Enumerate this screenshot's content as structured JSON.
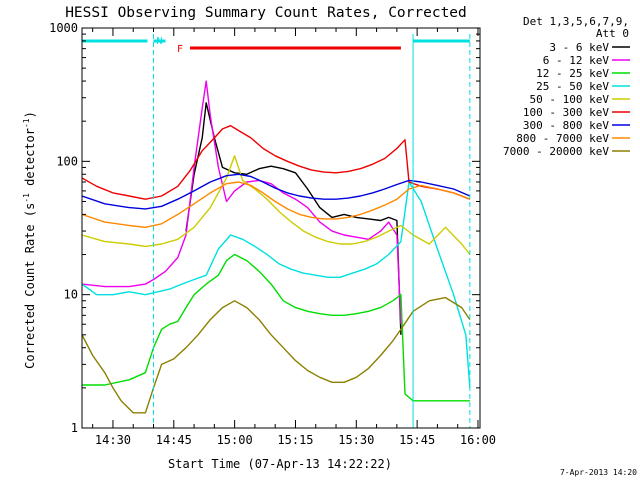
{
  "chart_data": {
    "type": "line",
    "title": "HESSI Observing Summary Count Rates, Corrected",
    "xlabel": "Start Time (07-Apr-13 14:22:22)",
    "ylabel_main": "Corrected Count Rate (s",
    "ylabel_sup1": "-1",
    "ylabel_mid": " detector",
    "ylabel_sup2": "-1",
    "ylabel_end": ")",
    "y_scale": "log",
    "ylim": [
      1,
      1000
    ],
    "xlim": [
      "14:22:22",
      "16:00:30"
    ],
    "x_ticks": [
      "14:30",
      "14:45",
      "15:00",
      "15:15",
      "15:30",
      "15:45",
      "16:00"
    ],
    "y_ticks": [
      "1",
      "10",
      "100",
      "1000"
    ],
    "legend_position": "right",
    "legend_header": [
      "Det 1,3,5,6,7,9,",
      "Att 0"
    ],
    "timestamp": "7-Apr-2013 14:20",
    "annotations": {
      "night_label": "N",
      "flare_label": "F",
      "night_start": "14:22:22",
      "night_end": "14:40:00",
      "night_color": "#00e0e0",
      "night2_start": "15:44:00",
      "night2_end": "15:58:00",
      "flare_start": "14:49:00",
      "flare_end": "15:41:00",
      "flare_color": "#ee0000"
    },
    "series": [
      {
        "name": "3 - 6 keV",
        "color": "#000000",
        "points": [
          [
            "14:48",
            30
          ],
          [
            "14:50",
            80
          ],
          [
            "14:52",
            150
          ],
          [
            "14:53",
            275
          ],
          [
            "14:55",
            150
          ],
          [
            "14:57",
            90
          ],
          [
            "15:00",
            82
          ],
          [
            "15:03",
            80
          ],
          [
            "15:06",
            88
          ],
          [
            "15:09",
            92
          ],
          [
            "15:12",
            88
          ],
          [
            "15:15",
            82
          ],
          [
            "15:18",
            62
          ],
          [
            "15:21",
            45
          ],
          [
            "15:24",
            38
          ],
          [
            "15:27",
            40
          ],
          [
            "15:30",
            38
          ],
          [
            "15:33",
            37
          ],
          [
            "15:36",
            36
          ],
          [
            "15:38",
            38
          ],
          [
            "15:40",
            36
          ],
          [
            "15:41",
            5
          ]
        ]
      },
      {
        "name": "6 - 12 keV",
        "color": "#ee00ee",
        "points": [
          [
            "14:22:22",
            12
          ],
          [
            "14:28",
            11.5
          ],
          [
            "14:34",
            11.5
          ],
          [
            "14:38",
            12
          ],
          [
            "14:40",
            13
          ],
          [
            "14:43",
            15
          ],
          [
            "14:46",
            19
          ],
          [
            "14:48",
            28
          ],
          [
            "14:50",
            90
          ],
          [
            "14:52",
            250
          ],
          [
            "14:53",
            400
          ],
          [
            "14:54",
            220
          ],
          [
            "14:56",
            90
          ],
          [
            "14:58",
            50
          ],
          [
            "15:00",
            60
          ],
          [
            "15:03",
            70
          ],
          [
            "15:06",
            72
          ],
          [
            "15:09",
            68
          ],
          [
            "15:12",
            58
          ],
          [
            "15:15",
            52
          ],
          [
            "15:18",
            45
          ],
          [
            "15:21",
            35
          ],
          [
            "15:24",
            30
          ],
          [
            "15:27",
            28
          ],
          [
            "15:30",
            27
          ],
          [
            "15:33",
            26
          ],
          [
            "15:36",
            30
          ],
          [
            "15:38",
            35
          ],
          [
            "15:40",
            28
          ],
          [
            "15:41",
            6
          ]
        ]
      },
      {
        "name": "12 - 25 keV",
        "color": "#00dd00",
        "points": [
          [
            "14:22:22",
            2.1
          ],
          [
            "14:28",
            2.1
          ],
          [
            "14:34",
            2.3
          ],
          [
            "14:38",
            2.6
          ],
          [
            "14:40",
            4
          ],
          [
            "14:42",
            5.5
          ],
          [
            "14:44",
            6
          ],
          [
            "14:46",
            6.3
          ],
          [
            "14:48",
            8
          ],
          [
            "14:50",
            10
          ],
          [
            "14:53",
            12
          ],
          [
            "14:56",
            14
          ],
          [
            "14:58",
            18
          ],
          [
            "15:00",
            20
          ],
          [
            "15:03",
            18
          ],
          [
            "15:06",
            15
          ],
          [
            "15:09",
            12
          ],
          [
            "15:12",
            9
          ],
          [
            "15:15",
            8
          ],
          [
            "15:18",
            7.5
          ],
          [
            "15:21",
            7.2
          ],
          [
            "15:24",
            7
          ],
          [
            "15:27",
            7
          ],
          [
            "15:30",
            7.2
          ],
          [
            "15:33",
            7.5
          ],
          [
            "15:36",
            8
          ],
          [
            "15:39",
            9
          ],
          [
            "15:41",
            10
          ],
          [
            "15:42",
            1.8
          ],
          [
            "15:44",
            1.6
          ],
          [
            "15:58",
            1.6
          ]
        ]
      },
      {
        "name": "25 - 50 keV",
        "color": "#00e0e0",
        "points": [
          [
            "14:22:22",
            12
          ],
          [
            "14:26",
            10
          ],
          [
            "14:30",
            10
          ],
          [
            "14:34",
            10.5
          ],
          [
            "14:38",
            10
          ],
          [
            "14:41",
            10.5
          ],
          [
            "14:44",
            11
          ],
          [
            "14:47",
            12
          ],
          [
            "14:50",
            13
          ],
          [
            "14:53",
            14
          ],
          [
            "14:56",
            22
          ],
          [
            "14:59",
            28
          ],
          [
            "15:02",
            26
          ],
          [
            "15:05",
            23
          ],
          [
            "15:08",
            20
          ],
          [
            "15:11",
            17
          ],
          [
            "15:14",
            15.5
          ],
          [
            "15:17",
            14.5
          ],
          [
            "15:20",
            14
          ],
          [
            "15:23",
            13.5
          ],
          [
            "15:26",
            13.5
          ],
          [
            "15:29",
            14.5
          ],
          [
            "15:32",
            15.5
          ],
          [
            "15:35",
            17
          ],
          [
            "15:38",
            20
          ],
          [
            "15:41",
            25
          ],
          [
            "15:43",
            70
          ],
          [
            "15:46",
            50
          ],
          [
            "15:50",
            22
          ],
          [
            "15:54",
            10
          ],
          [
            "15:57",
            5
          ],
          [
            "15:58",
            2
          ]
        ]
      },
      {
        "name": "50 - 100 keV",
        "color": "#cccc00",
        "points": [
          [
            "14:22:22",
            28
          ],
          [
            "14:28",
            25
          ],
          [
            "14:34",
            24
          ],
          [
            "14:38",
            23
          ],
          [
            "14:42",
            24
          ],
          [
            "14:46",
            26
          ],
          [
            "14:50",
            32
          ],
          [
            "14:54",
            45
          ],
          [
            "14:58",
            75
          ],
          [
            "15:00",
            110
          ],
          [
            "15:02",
            72
          ],
          [
            "15:05",
            62
          ],
          [
            "15:08",
            52
          ],
          [
            "15:11",
            42
          ],
          [
            "15:14",
            35
          ],
          [
            "15:17",
            30
          ],
          [
            "15:20",
            27
          ],
          [
            "15:23",
            25
          ],
          [
            "15:26",
            24
          ],
          [
            "15:29",
            24
          ],
          [
            "15:32",
            25
          ],
          [
            "15:35",
            27
          ],
          [
            "15:38",
            30
          ],
          [
            "15:41",
            33
          ],
          [
            "15:44",
            28
          ],
          [
            "15:48",
            24
          ],
          [
            "15:52",
            32
          ],
          [
            "15:56",
            24
          ],
          [
            "15:58",
            20
          ]
        ]
      },
      {
        "name": "100 - 300 keV",
        "color": "#ee0000",
        "points": [
          [
            "14:22:22",
            75
          ],
          [
            "14:26",
            65
          ],
          [
            "14:30",
            58
          ],
          [
            "14:34",
            55
          ],
          [
            "14:38",
            52
          ],
          [
            "14:42",
            55
          ],
          [
            "14:46",
            65
          ],
          [
            "14:49",
            85
          ],
          [
            "14:52",
            120
          ],
          [
            "14:55",
            150
          ],
          [
            "14:57",
            175
          ],
          [
            "14:59",
            185
          ],
          [
            "15:01",
            170
          ],
          [
            "15:04",
            150
          ],
          [
            "15:07",
            125
          ],
          [
            "15:10",
            110
          ],
          [
            "15:13",
            100
          ],
          [
            "15:16",
            92
          ],
          [
            "15:19",
            86
          ],
          [
            "15:22",
            83
          ],
          [
            "15:25",
            82
          ],
          [
            "15:28",
            84
          ],
          [
            "15:31",
            88
          ],
          [
            "15:34",
            95
          ],
          [
            "15:37",
            105
          ],
          [
            "15:40",
            125
          ],
          [
            "15:42",
            145
          ],
          [
            "15:43",
            70
          ],
          [
            "15:46",
            65
          ],
          [
            "15:50",
            62
          ],
          [
            "15:54",
            58
          ],
          [
            "15:58",
            52
          ]
        ]
      },
      {
        "name": "300 - 800 keV",
        "color": "#0000dd",
        "points": [
          [
            "14:22:22",
            55
          ],
          [
            "14:28",
            48
          ],
          [
            "14:34",
            45
          ],
          [
            "14:38",
            44
          ],
          [
            "14:42",
            46
          ],
          [
            "14:46",
            52
          ],
          [
            "14:50",
            60
          ],
          [
            "14:54",
            70
          ],
          [
            "14:58",
            78
          ],
          [
            "15:01",
            80
          ],
          [
            "15:04",
            77
          ],
          [
            "15:07",
            70
          ],
          [
            "15:10",
            63
          ],
          [
            "15:13",
            58
          ],
          [
            "15:16",
            55
          ],
          [
            "15:19",
            53
          ],
          [
            "15:22",
            52
          ],
          [
            "15:25",
            52
          ],
          [
            "15:28",
            53
          ],
          [
            "15:31",
            55
          ],
          [
            "15:34",
            58
          ],
          [
            "15:37",
            62
          ],
          [
            "15:40",
            67
          ],
          [
            "15:43",
            72
          ],
          [
            "15:46",
            70
          ],
          [
            "15:50",
            66
          ],
          [
            "15:54",
            62
          ],
          [
            "15:58",
            55
          ]
        ]
      },
      {
        "name": "800 - 7000 keV",
        "color": "#ff8800",
        "points": [
          [
            "14:22:22",
            40
          ],
          [
            "14:28",
            35
          ],
          [
            "14:34",
            33
          ],
          [
            "14:38",
            32
          ],
          [
            "14:42",
            34
          ],
          [
            "14:46",
            40
          ],
          [
            "14:50",
            48
          ],
          [
            "14:54",
            58
          ],
          [
            "14:58",
            68
          ],
          [
            "15:01",
            70
          ],
          [
            "15:04",
            66
          ],
          [
            "15:07",
            58
          ],
          [
            "15:10",
            50
          ],
          [
            "15:13",
            44
          ],
          [
            "15:16",
            40
          ],
          [
            "15:19",
            38
          ],
          [
            "15:22",
            37
          ],
          [
            "15:25",
            37
          ],
          [
            "15:28",
            38
          ],
          [
            "15:31",
            40
          ],
          [
            "15:34",
            43
          ],
          [
            "15:37",
            47
          ],
          [
            "15:40",
            52
          ],
          [
            "15:43",
            62
          ],
          [
            "15:46",
            66
          ],
          [
            "15:50",
            62
          ],
          [
            "15:54",
            58
          ],
          [
            "15:58",
            52
          ]
        ]
      },
      {
        "name": "7000 - 20000 keV",
        "color": "#8b8000",
        "points": [
          [
            "14:22:22",
            5
          ],
          [
            "14:25",
            3.5
          ],
          [
            "14:28",
            2.6
          ],
          [
            "14:30",
            2.0
          ],
          [
            "14:32",
            1.6
          ],
          [
            "14:35",
            1.3
          ],
          [
            "14:38",
            1.3
          ],
          [
            "14:40",
            2
          ],
          [
            "14:42",
            3
          ],
          [
            "14:45",
            3.3
          ],
          [
            "14:48",
            4
          ],
          [
            "14:51",
            5
          ],
          [
            "14:54",
            6.5
          ],
          [
            "14:57",
            8
          ],
          [
            "15:00",
            9
          ],
          [
            "15:03",
            8
          ],
          [
            "15:06",
            6.5
          ],
          [
            "15:09",
            5
          ],
          [
            "15:12",
            4
          ],
          [
            "15:15",
            3.2
          ],
          [
            "15:18",
            2.7
          ],
          [
            "15:21",
            2.4
          ],
          [
            "15:24",
            2.2
          ],
          [
            "15:27",
            2.2
          ],
          [
            "15:30",
            2.4
          ],
          [
            "15:33",
            2.8
          ],
          [
            "15:36",
            3.5
          ],
          [
            "15:39",
            4.5
          ],
          [
            "15:41",
            5.5
          ],
          [
            "15:44",
            7.5
          ],
          [
            "15:48",
            9
          ],
          [
            "15:52",
            9.5
          ],
          [
            "15:56",
            8
          ],
          [
            "15:58",
            6.5
          ]
        ]
      }
    ]
  }
}
